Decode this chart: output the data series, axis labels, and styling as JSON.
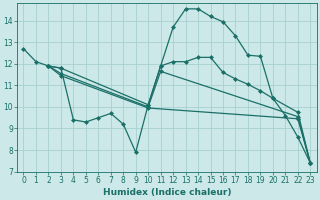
{
  "xlabel": "Humidex (Indice chaleur)",
  "bg_color": "#cce8e8",
  "line_color": "#1a7068",
  "grid_color": "#a8d0d0",
  "xlim": [
    -0.5,
    23.5
  ],
  "ylim": [
    7,
    14.8
  ],
  "yticks": [
    7,
    8,
    9,
    10,
    11,
    12,
    13,
    14
  ],
  "xticks": [
    0,
    1,
    2,
    3,
    4,
    5,
    6,
    7,
    8,
    9,
    10,
    11,
    12,
    13,
    14,
    15,
    16,
    17,
    18,
    19,
    20,
    21,
    22,
    23
  ],
  "series": [
    {
      "x": [
        0,
        1,
        2,
        3,
        4,
        5,
        6,
        7,
        8,
        9,
        10,
        11,
        12,
        13,
        14,
        15,
        16,
        17,
        18,
        19,
        20,
        21,
        22,
        23
      ],
      "y": [
        12.7,
        12.1,
        11.9,
        11.8,
        9.4,
        9.3,
        9.5,
        9.7,
        9.2,
        7.9,
        10.1,
        11.9,
        13.7,
        14.55,
        14.55,
        14.2,
        13.95,
        13.3,
        12.4,
        12.35,
        10.4,
        9.6,
        8.6,
        7.4
      ]
    },
    {
      "x": [
        2,
        3,
        10,
        11,
        12,
        13,
        14,
        15,
        16,
        17,
        18,
        19,
        20,
        22,
        23
      ],
      "y": [
        11.9,
        11.8,
        10.1,
        11.9,
        12.1,
        12.1,
        12.3,
        12.3,
        11.6,
        11.3,
        11.05,
        10.75,
        10.4,
        9.75,
        7.4
      ]
    },
    {
      "x": [
        2,
        3,
        10,
        11,
        22,
        23
      ],
      "y": [
        11.9,
        11.55,
        10.0,
        11.65,
        9.55,
        7.4
      ]
    },
    {
      "x": [
        2,
        3,
        10,
        22,
        23
      ],
      "y": [
        11.9,
        11.45,
        9.95,
        9.45,
        7.4
      ]
    }
  ]
}
